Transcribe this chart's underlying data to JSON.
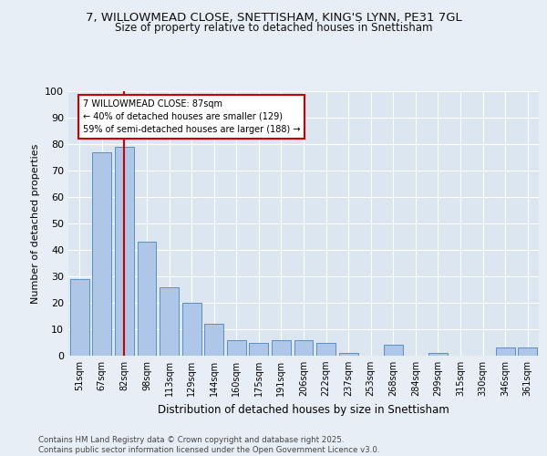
{
  "title_line1": "7, WILLOWMEAD CLOSE, SNETTISHAM, KING'S LYNN, PE31 7GL",
  "title_line2": "Size of property relative to detached houses in Snettisham",
  "xlabel": "Distribution of detached houses by size in Snettisham",
  "ylabel": "Number of detached properties",
  "categories": [
    "51sqm",
    "67sqm",
    "82sqm",
    "98sqm",
    "113sqm",
    "129sqm",
    "144sqm",
    "160sqm",
    "175sqm",
    "191sqm",
    "206sqm",
    "222sqm",
    "237sqm",
    "253sqm",
    "268sqm",
    "284sqm",
    "299sqm",
    "315sqm",
    "330sqm",
    "346sqm",
    "361sqm"
  ],
  "values": [
    29,
    77,
    79,
    43,
    26,
    20,
    12,
    6,
    5,
    6,
    6,
    5,
    1,
    0,
    4,
    0,
    1,
    0,
    0,
    3,
    3
  ],
  "bar_color": "#aec6e8",
  "bar_edge_color": "#5a8fc0",
  "vline_x_index": 2,
  "vline_color": "#cc0000",
  "annotation_text": "7 WILLOWMEAD CLOSE: 87sqm\n← 40% of detached houses are smaller (129)\n59% of semi-detached houses are larger (188) →",
  "annotation_box_color": "#ffffff",
  "annotation_box_edge_color": "#cc0000",
  "footer_text": "Contains HM Land Registry data © Crown copyright and database right 2025.\nContains public sector information licensed under the Open Government Licence v3.0.",
  "ylim": [
    0,
    100
  ],
  "background_color": "#e8eef5",
  "plot_background_color": "#dce6f0"
}
